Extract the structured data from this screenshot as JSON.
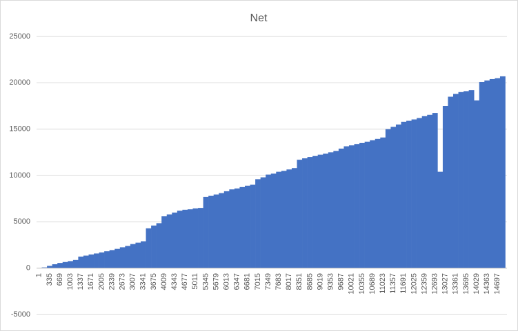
{
  "chart_data": {
    "type": "bar",
    "title": "Net",
    "categories": [
      "1",
      null,
      "335",
      null,
      "669",
      null,
      "1003",
      null,
      "1337",
      null,
      "1671",
      null,
      "2005",
      null,
      "2339",
      null,
      "2673",
      null,
      "3007",
      null,
      "3341",
      null,
      "3675",
      null,
      "4009",
      null,
      "4343",
      null,
      "4677",
      null,
      "5011",
      null,
      "5345",
      null,
      "5679",
      null,
      "6013",
      null,
      "6347",
      null,
      "6681",
      null,
      "7015",
      null,
      "7349",
      null,
      "7683",
      null,
      "8017",
      null,
      "8351",
      null,
      "8685",
      null,
      "9019",
      null,
      "9353",
      null,
      "9687",
      null,
      "10021",
      null,
      "10355",
      null,
      "10689",
      null,
      "11023",
      null,
      "11357",
      null,
      "11691",
      null,
      "12025",
      null,
      "12359",
      null,
      "12693",
      null,
      "13027",
      null,
      "13361",
      null,
      "13695",
      null,
      "14029",
      null,
      "14363",
      null,
      "14697",
      null
    ],
    "values": [
      0,
      80,
      250,
      420,
      560,
      660,
      760,
      880,
      1250,
      1350,
      1480,
      1580,
      1700,
      1820,
      1950,
      2080,
      2250,
      2400,
      2600,
      2750,
      2900,
      4300,
      4600,
      4850,
      5600,
      5800,
      6000,
      6200,
      6300,
      6350,
      6450,
      6500,
      7700,
      7800,
      7950,
      8100,
      8300,
      8500,
      8600,
      8750,
      8900,
      9000,
      9600,
      9800,
      10100,
      10200,
      10400,
      10500,
      10650,
      10800,
      11700,
      11850,
      12000,
      12100,
      12250,
      12350,
      12500,
      12650,
      12900,
      13150,
      13250,
      13400,
      13500,
      13650,
      13800,
      13950,
      14100,
      15000,
      15250,
      15500,
      15800,
      15900,
      16050,
      16200,
      16400,
      16550,
      16750,
      10400,
      17500,
      18500,
      18800,
      19000,
      19100,
      19200,
      18100,
      20100,
      20250,
      20400,
      20500,
      20700
    ],
    "color": "#4472c4",
    "ylim": [
      -5000,
      25000
    ],
    "yticks": [
      -5000,
      0,
      5000,
      10000,
      15000,
      20000,
      25000
    ],
    "grid": true
  }
}
